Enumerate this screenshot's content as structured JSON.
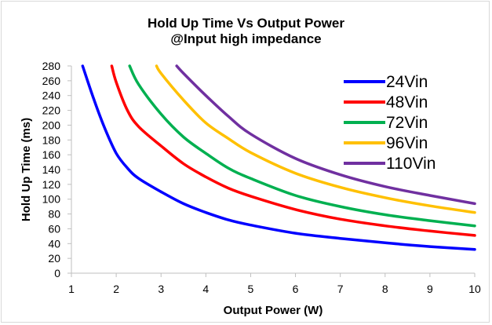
{
  "chart_data": {
    "type": "line",
    "title": "Hold Up Time Vs Output Power",
    "subtitle": "@Input high impedance",
    "xlabel": "Output Power (W)",
    "ylabel": "Hold Up Time (ms)",
    "xlim": [
      1,
      10
    ],
    "ylim": [
      0,
      280
    ],
    "xticks": [
      "1",
      "2",
      "3",
      "4",
      "5",
      "6",
      "7",
      "8",
      "9",
      "10"
    ],
    "yticks": [
      "0",
      "20",
      "40",
      "60",
      "80",
      "100",
      "120",
      "140",
      "160",
      "180",
      "200",
      "220",
      "240",
      "260",
      "280"
    ],
    "grid": false,
    "legend_position": "top-right",
    "series": [
      {
        "name": "24Vin",
        "color": "#0000ff",
        "x": [
          1.25,
          1.5,
          1.75,
          2.0,
          2.25,
          2.5,
          3.0,
          3.5,
          4.0,
          4.5,
          5.0,
          6.0,
          7.0,
          8.0,
          9.0,
          10.0
        ],
        "y": [
          280,
          235,
          195,
          162,
          142,
          128,
          110,
          94,
          82,
          72,
          65,
          54,
          47,
          41,
          36,
          32
        ]
      },
      {
        "name": "48Vin",
        "color": "#ff0000",
        "x": [
          1.9,
          2.0,
          2.25,
          2.5,
          3.0,
          3.5,
          4.0,
          4.5,
          5.0,
          6.0,
          7.0,
          8.0,
          9.0,
          10.0
        ],
        "y": [
          280,
          258,
          220,
          198,
          172,
          148,
          130,
          115,
          104,
          86,
          73,
          64,
          57,
          51
        ]
      },
      {
        "name": "72Vin",
        "color": "#00b050",
        "x": [
          2.3,
          2.5,
          3.0,
          3.5,
          4.0,
          4.5,
          5.0,
          6.0,
          7.0,
          8.0,
          9.0,
          10.0
        ],
        "y": [
          280,
          255,
          215,
          184,
          162,
          142,
          128,
          105,
          90,
          79,
          71,
          64
        ]
      },
      {
        "name": "96Vin",
        "color": "#ffc000",
        "x": [
          2.9,
          3.0,
          3.5,
          4.0,
          4.5,
          5.0,
          6.0,
          7.0,
          8.0,
          9.0,
          10.0
        ],
        "y": [
          280,
          270,
          234,
          203,
          182,
          163,
          135,
          116,
          102,
          91,
          82
        ]
      },
      {
        "name": "110Vin",
        "color": "#7030a0",
        "x": [
          3.35,
          3.5,
          4.0,
          4.5,
          5.0,
          6.0,
          7.0,
          8.0,
          9.0,
          10.0
        ],
        "y": [
          280,
          270,
          240,
          212,
          188,
          155,
          133,
          117,
          105,
          94
        ]
      }
    ]
  }
}
